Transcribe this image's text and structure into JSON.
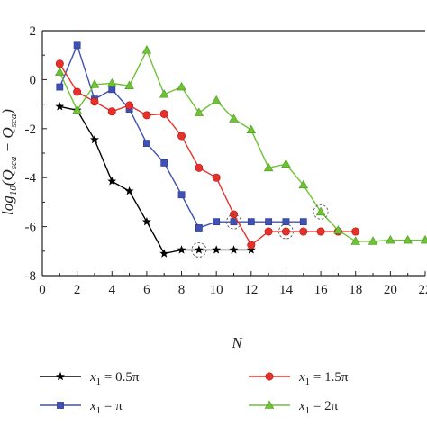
{
  "chart_data": {
    "type": "line",
    "xlabel": "N",
    "ylabel": "log10(Q_sca - Q_sca)",
    "xlim": [
      0,
      22
    ],
    "ylim": [
      -8,
      2
    ],
    "x_ticks": [
      "0",
      "2",
      "4",
      "6",
      "8",
      "10",
      "12",
      "14",
      "16",
      "18",
      "20",
      "22"
    ],
    "y_ticks": [
      "2",
      "0",
      "-2",
      "-4",
      "-6",
      "-8"
    ],
    "grid": false,
    "legend_position": "bottom",
    "series": [
      {
        "name": "x1 = 0.5π",
        "legend_prefix": "x",
        "legend_sub": "1",
        "legend_suffix": " = 0.5π",
        "color": "#000000",
        "marker": "star",
        "x": [
          1,
          2,
          3,
          4,
          5,
          6,
          7,
          8,
          9,
          10,
          11,
          12
        ],
        "y": [
          -1.1,
          -1.25,
          -2.45,
          -4.15,
          -4.55,
          -5.8,
          -7.1,
          -6.95,
          -6.95,
          -6.95,
          -6.95,
          -6.95
        ]
      },
      {
        "name": "x1 = π",
        "legend_prefix": "x",
        "legend_sub": "1",
        "legend_suffix": " = π",
        "color": "#3f51b5",
        "marker": "square",
        "x": [
          1,
          2,
          3,
          4,
          5,
          6,
          7,
          8,
          9,
          10,
          11,
          12,
          13,
          14,
          15
        ],
        "y": [
          -0.3,
          1.4,
          -0.8,
          -0.4,
          -1.2,
          -2.6,
          -3.4,
          -4.7,
          -6.05,
          -5.8,
          -5.8,
          -5.8,
          -5.8,
          -5.8,
          -5.8
        ]
      },
      {
        "name": "x1 = 1.5π",
        "legend_prefix": "x",
        "legend_sub": "1",
        "legend_suffix": " = 1.5π",
        "color": "#e8302a",
        "marker": "circle",
        "x": [
          1,
          2,
          3,
          4,
          5,
          6,
          7,
          8,
          9,
          10,
          11,
          12,
          13,
          14,
          15,
          16,
          17,
          18
        ],
        "y": [
          0.65,
          -0.5,
          -0.9,
          -1.3,
          -1.05,
          -1.45,
          -1.4,
          -2.3,
          -3.6,
          -4.0,
          -5.5,
          -6.75,
          -6.2,
          -6.2,
          -6.2,
          -6.2,
          -6.2,
          -6.2
        ]
      },
      {
        "name": "x1 = 2π",
        "legend_prefix": "x",
        "legend_sub": "1",
        "legend_suffix": " = 2π",
        "color": "#6ec234",
        "marker": "triangle",
        "x": [
          1,
          2,
          3,
          4,
          5,
          6,
          7,
          8,
          9,
          10,
          11,
          12,
          13,
          14,
          15,
          16,
          17,
          18,
          19,
          20,
          21,
          22
        ],
        "y": [
          0.3,
          -1.25,
          -0.2,
          -0.15,
          -0.25,
          1.2,
          -0.6,
          -0.3,
          -1.35,
          -0.85,
          -1.6,
          -2.05,
          -3.6,
          -3.45,
          -4.3,
          -5.4,
          -6.15,
          -6.6,
          -6.6,
          -6.55,
          -6.55,
          -6.55
        ]
      }
    ],
    "highlights": [
      {
        "x": 9,
        "y": -6.95
      },
      {
        "x": 11,
        "y": -5.8
      },
      {
        "x": 14,
        "y": -6.2
      },
      {
        "x": 16,
        "y": -5.4
      }
    ]
  }
}
